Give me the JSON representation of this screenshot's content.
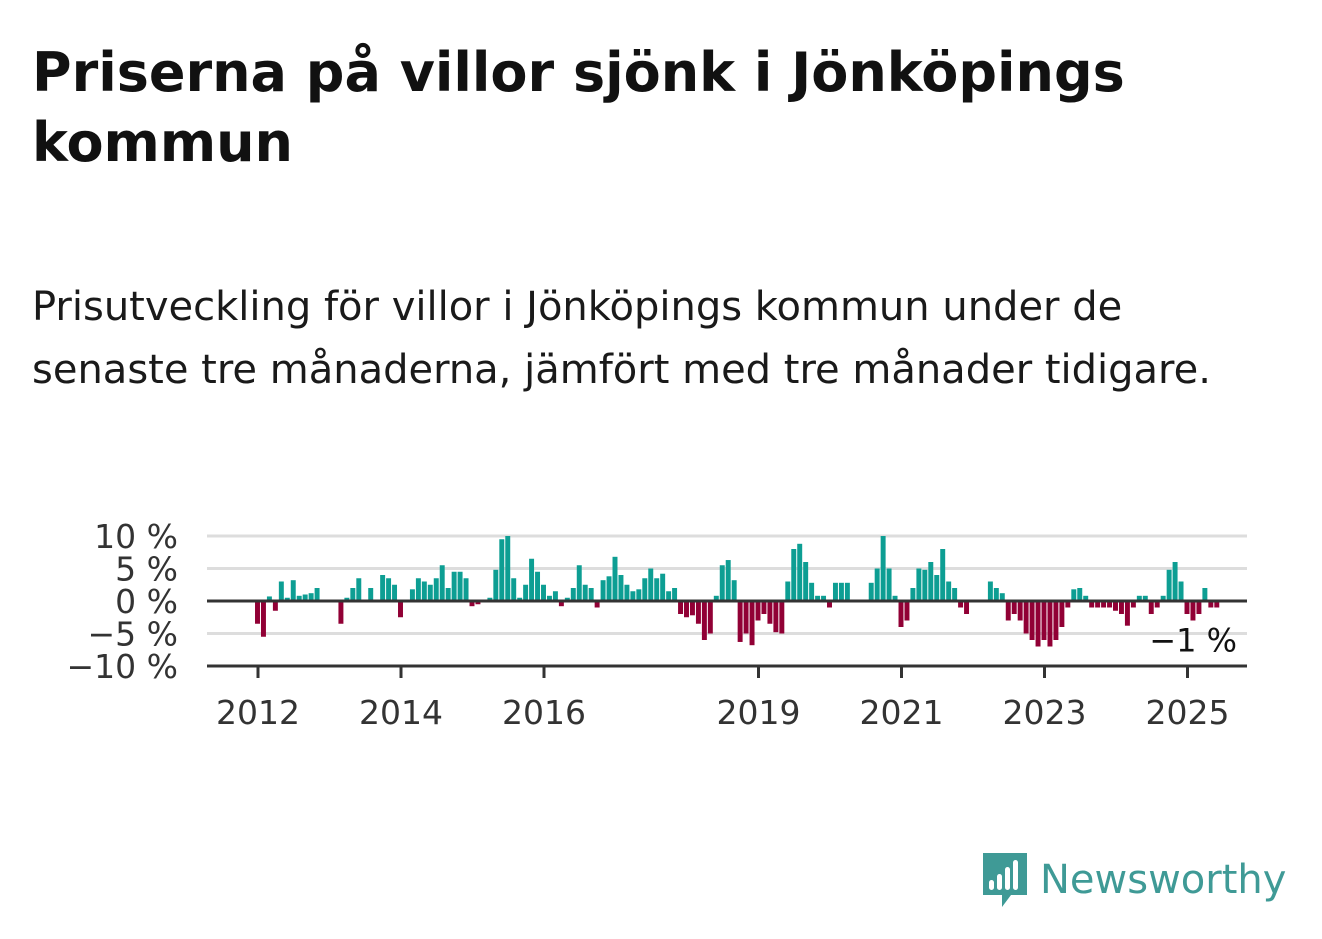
{
  "title": "Priserna på villor sjönk i Jönköpings kommun",
  "subtitle": "Prisutveckling för villor i Jönköpings kommun under de senaste tre månaderna, jämfört med tre månader tidigare.",
  "brand": {
    "name": "Newsworthy",
    "icon": "newsworthy-logo-icon",
    "color": "#3f9a96"
  },
  "colors": {
    "positive": "#0d9e93",
    "negative": "#910035",
    "grid": "#dddddd",
    "axis": "#333333"
  },
  "chart_data": {
    "type": "bar",
    "x_start": "2012-01",
    "x_step": "month",
    "ylim": [
      -10,
      10
    ],
    "yticks": [
      {
        "value": 10,
        "label": "10 %"
      },
      {
        "value": 5,
        "label": "5 %"
      },
      {
        "value": 0,
        "label": "0 %"
      },
      {
        "value": -5,
        "label": "−5 %"
      },
      {
        "value": -10,
        "label": "−10 %"
      }
    ],
    "xticks": [
      {
        "year": 2012,
        "label": "2012"
      },
      {
        "year": 2014,
        "label": "2014"
      },
      {
        "year": 2016,
        "label": "2016"
      },
      {
        "year": 2019,
        "label": "2019"
      },
      {
        "year": 2021,
        "label": "2021"
      },
      {
        "year": 2023,
        "label": "2023"
      },
      {
        "year": 2025,
        "label": "2025"
      }
    ],
    "values": [
      -3.5,
      -5.5,
      0.7,
      -1.5,
      3.0,
      0.5,
      3.2,
      0.8,
      1.0,
      1.2,
      2.0,
      0,
      0,
      0,
      -3.5,
      0.5,
      2.0,
      3.5,
      0,
      2.0,
      0,
      4.0,
      3.5,
      2.5,
      -2.5,
      0,
      1.8,
      3.5,
      3.0,
      2.5,
      3.5,
      5.5,
      2.0,
      4.5,
      4.5,
      3.5,
      -0.8,
      -0.5,
      0,
      0.5,
      4.8,
      9.5,
      10.0,
      3.5,
      0.5,
      2.5,
      6.5,
      4.5,
      2.5,
      0.8,
      1.5,
      -0.8,
      0.5,
      2.0,
      5.5,
      2.5,
      2.0,
      -1.0,
      3.2,
      3.8,
      6.8,
      4.0,
      2.5,
      1.5,
      1.8,
      3.5,
      5.0,
      3.5,
      4.2,
      1.5,
      2.0,
      -2.0,
      -2.5,
      -2.2,
      -3.5,
      -6.0,
      -5.0,
      0.8,
      5.5,
      6.3,
      3.2,
      -6.3,
      -5.0,
      -6.8,
      -3.0,
      -2.0,
      -3.5,
      -4.8,
      -5.0,
      3.0,
      8.0,
      8.8,
      6.0,
      2.8,
      0.8,
      0.8,
      -1.0,
      2.8,
      2.8,
      2.8,
      0,
      0,
      0,
      2.8,
      5.0,
      10.0,
      5.0,
      0.8,
      -4.0,
      -3.0,
      2.0,
      5.0,
      4.8,
      6.0,
      4.0,
      8.0,
      3.0,
      2.0,
      -1.0,
      -2.0,
      0,
      0,
      0,
      3.0,
      2.0,
      1.2,
      -3.0,
      -2.0,
      -3.0,
      -5.0,
      -6.0,
      -7.0,
      -6.0,
      -7.0,
      -6.0,
      -4.0,
      -1.0,
      1.8,
      2.0,
      0.8,
      -1.0,
      -1.0,
      -1.0,
      -1.0,
      -1.5,
      -2.0,
      -3.8,
      -1.0,
      0.8,
      0.8,
      -2.0,
      -1.0,
      0.8,
      4.8,
      6.0,
      3.0,
      -2.0,
      -3.0,
      -2.0,
      2.0,
      -1.0,
      -1.0
    ],
    "last_value_label": "−1 %"
  }
}
